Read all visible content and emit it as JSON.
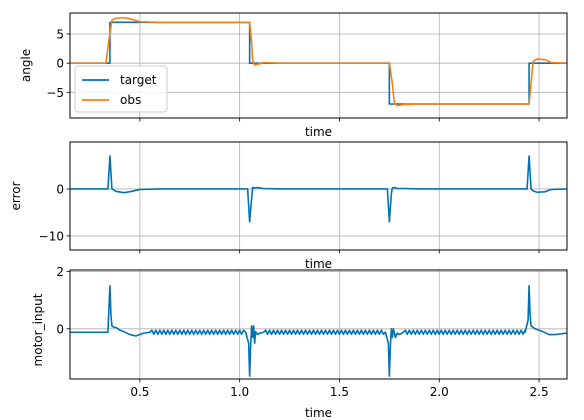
{
  "chart_data": [
    {
      "type": "line",
      "xlabel": "time",
      "ylabel": "angle",
      "xlim": [
        0.15,
        2.64
      ],
      "ylim": [
        -9.4,
        8.6
      ],
      "xticks": [
        0.5,
        1.0,
        1.5,
        2.0,
        2.5
      ],
      "xticklabels": [],
      "yticks": [
        5,
        0,
        -5
      ],
      "yticklabels": [
        "5",
        "0",
        "−5"
      ],
      "grid": true,
      "legend": "lower-left",
      "colors": {
        "target": "#0072b2",
        "obs": "#ff7f0e",
        "grid": "#b0b0b0"
      },
      "series": [
        {
          "name": "target",
          "x": [
            0.15,
            0.35,
            0.35,
            1.05,
            1.05,
            1.75,
            1.75,
            2.45,
            2.45,
            2.64
          ],
          "y": [
            0,
            0,
            7,
            7,
            0,
            0,
            -7,
            -7,
            0,
            0
          ]
        },
        {
          "name": "obs",
          "x": [
            0.15,
            0.33,
            0.345,
            0.36,
            0.38,
            0.42,
            0.45,
            0.5,
            0.6,
            1.05,
            1.06,
            1.065,
            1.075,
            1.09,
            1.12,
            1.2,
            1.75,
            1.765,
            1.775,
            1.79,
            1.82,
            1.9,
            2.45,
            2.46,
            2.47,
            2.49,
            2.53,
            2.56,
            2.64
          ],
          "y": [
            0,
            0,
            4,
            7.4,
            7.7,
            7.8,
            7.6,
            7.1,
            7.0,
            7.0,
            3.5,
            0.5,
            -0.3,
            -0.2,
            0.1,
            0,
            0,
            -3.5,
            -6.9,
            -7.3,
            -7.1,
            -7.0,
            -7.0,
            -3.5,
            0.3,
            0.7,
            0.6,
            0.1,
            0
          ]
        }
      ]
    },
    {
      "type": "line",
      "xlabel": "time",
      "ylabel": "error",
      "xlim": [
        0.15,
        2.64
      ],
      "ylim": [
        -13,
        10
      ],
      "xticks": [
        0.5,
        1.0,
        1.5,
        2.0,
        2.5
      ],
      "xticklabels": [],
      "yticks": [
        0,
        -10
      ],
      "yticklabels": [
        "0",
        "−10"
      ],
      "grid": true,
      "colors": {
        "line": "#0072b2",
        "grid": "#b0b0b0"
      },
      "series": [
        {
          "x": [
            0.15,
            0.34,
            0.35,
            0.36,
            0.38,
            0.42,
            0.46,
            0.5,
            0.6,
            1.04,
            1.05,
            1.06,
            1.065,
            1.075,
            1.09,
            1.12,
            1.2,
            1.74,
            1.75,
            1.76,
            1.765,
            1.775,
            1.79,
            1.82,
            1.9,
            2.44,
            2.45,
            2.46,
            2.47,
            2.49,
            2.53,
            2.56,
            2.64
          ],
          "y": [
            0,
            0,
            7,
            0,
            -0.5,
            -0.8,
            -0.5,
            -0.1,
            0,
            0,
            -7,
            -2,
            0.3,
            0.2,
            0.3,
            0.1,
            0,
            0,
            -7,
            -1,
            0.2,
            0.3,
            0.1,
            0.1,
            0,
            0,
            7,
            0,
            -0.4,
            -0.7,
            -0.6,
            -0.1,
            0
          ]
        }
      ]
    },
    {
      "type": "line",
      "xlabel": "time",
      "ylabel": "motor_input",
      "xlim": [
        0.15,
        2.64
      ],
      "ylim": [
        -1.75,
        2.05
      ],
      "xticks": [
        0.5,
        1.0,
        1.5,
        2.0,
        2.5
      ],
      "xticklabels": [
        "0.5",
        "1.0",
        "1.5",
        "2.0",
        "2.5"
      ],
      "yticks": [
        2,
        0
      ],
      "yticklabels": [
        "2",
        "0"
      ],
      "grid": true,
      "colors": {
        "line": "#0072b2",
        "grid": "#b0b0b0"
      },
      "osc_range": [
        [
          0.55,
          1.03
        ],
        [
          1.12,
          1.73
        ],
        [
          1.82,
          2.43
        ]
      ],
      "osc_base": -0.12,
      "osc_amp": 0.07,
      "osc_period": 0.02,
      "series": [
        {
          "x": [
            0.15,
            0.34,
            0.35,
            0.355,
            0.36,
            0.37,
            0.38,
            0.39,
            0.4,
            0.42,
            0.45,
            0.48,
            0.5,
            0.52,
            0.55,
            1.03,
            1.045,
            1.05,
            1.055,
            1.06,
            1.065,
            1.07,
            1.075,
            1.08,
            1.09,
            1.1,
            1.12,
            1.73,
            1.745,
            1.75,
            1.755,
            1.76,
            1.765,
            1.77,
            1.78,
            1.79,
            1.8,
            1.82,
            2.43,
            2.445,
            2.45,
            2.455,
            2.46,
            2.47,
            2.48,
            2.5,
            2.52,
            2.55,
            2.58,
            2.64
          ],
          "y": [
            -0.12,
            -0.12,
            1.5,
            0.5,
            0.1,
            0.05,
            0.05,
            0.0,
            -0.05,
            -0.1,
            -0.2,
            -0.25,
            -0.2,
            -0.15,
            -0.12,
            -0.12,
            -0.5,
            -1.65,
            -0.6,
            0.1,
            -0.3,
            0.1,
            -0.5,
            -0.1,
            -0.2,
            -0.15,
            -0.12,
            -0.12,
            -0.5,
            -1.65,
            -0.6,
            0.0,
            -0.3,
            0.0,
            -0.3,
            -0.15,
            -0.2,
            -0.12,
            -0.12,
            0.3,
            1.5,
            0.5,
            0.1,
            0.05,
            0.0,
            -0.05,
            -0.1,
            -0.2,
            -0.2,
            -0.15
          ]
        }
      ]
    }
  ],
  "legend": {
    "entries": [
      "target",
      "obs"
    ]
  }
}
